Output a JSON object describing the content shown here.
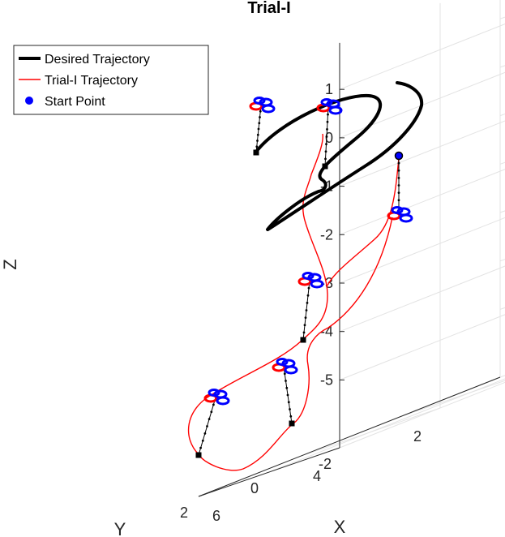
{
  "chart_data": {
    "type": "line",
    "projection": "3d",
    "title": "Trial-I",
    "xlabel": "X",
    "ylabel": "Y",
    "zlabel": "Z",
    "xlim": [
      0,
      6
    ],
    "ylim": [
      -2,
      2
    ],
    "zlim": [
      -5,
      1
    ],
    "x_ticks": [
      "0",
      "2",
      "4",
      "6"
    ],
    "y_ticks": [
      "-2",
      "0",
      "2"
    ],
    "z_ticks": [
      "1",
      "0",
      "-1",
      "-2",
      "-3",
      "-4",
      "-5"
    ],
    "grid": true,
    "legend_position": "top-left",
    "legend": [
      {
        "label": "Desired Trajectory",
        "color": "#000000",
        "marker": "line-thick"
      },
      {
        "label": "Trial-I Trajectory",
        "color": "#ff0000",
        "marker": "line"
      },
      {
        "label": "Start Point",
        "color": "#0000ff",
        "marker": "dot"
      }
    ],
    "series": [
      {
        "name": "Desired Trajectory",
        "color": "#000000",
        "style": "thick-solid"
      },
      {
        "name": "Trial-I Trajectory",
        "color": "#ff0000",
        "style": "thin-solid"
      },
      {
        "name": "Start Point",
        "color": "#0000ff",
        "style": "marker"
      }
    ],
    "quadrotor_snapshots": 7,
    "rotor_colors": {
      "front": "#ff0000",
      "rear": "#0000ff"
    },
    "payload_color": "#000000"
  }
}
